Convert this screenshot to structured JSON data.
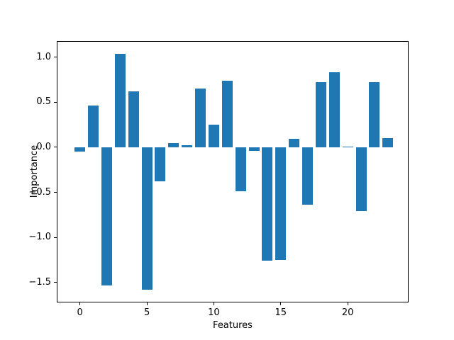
{
  "chart_data": {
    "type": "bar",
    "title": "",
    "xlabel": "Features",
    "ylabel": "Importance",
    "x": [
      0,
      1,
      2,
      3,
      4,
      5,
      6,
      7,
      8,
      9,
      10,
      11,
      12,
      13,
      14,
      15,
      16,
      17,
      18,
      19,
      20,
      21,
      22,
      23
    ],
    "values": [
      -0.05,
      0.46,
      -1.53,
      1.04,
      0.62,
      -1.58,
      -0.38,
      0.05,
      0.02,
      0.65,
      0.25,
      0.74,
      -0.49,
      -0.04,
      -1.26,
      -1.25,
      0.09,
      -0.64,
      0.72,
      0.83,
      0.01,
      -0.71,
      0.72,
      0.1
    ],
    "bar_color": "#1f77b4",
    "bar_width": 0.8,
    "xlim": [
      -1.68,
      24.6
    ],
    "ylim": [
      -1.73,
      1.17
    ],
    "xticks": {
      "values": [
        0,
        5,
        10,
        15,
        20
      ],
      "labels": [
        "0",
        "5",
        "10",
        "15",
        "20"
      ]
    },
    "yticks": {
      "values": [
        1.0,
        0.5,
        0.0,
        -0.5,
        -1.0,
        -1.5
      ],
      "labels": [
        "1.0",
        "0.5",
        "0.0",
        "−0.5",
        "−1.0",
        "−1.5"
      ]
    },
    "grid": false,
    "legend_position": "none",
    "background_color": "#ffffff",
    "spine_color": "#000000",
    "text_color": "#000000"
  }
}
